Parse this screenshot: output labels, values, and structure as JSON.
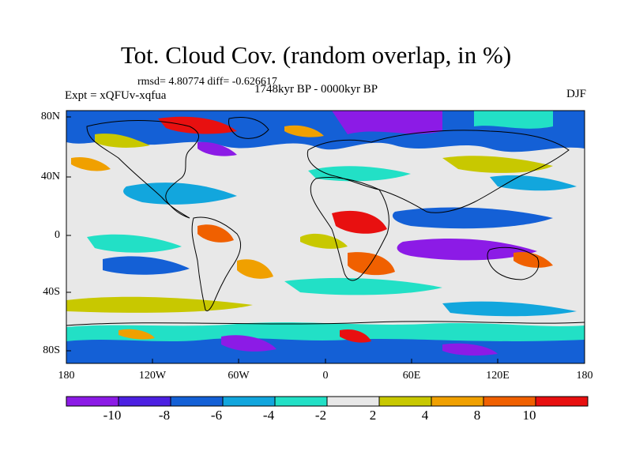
{
  "header": {
    "title": "Tot. Cloud Cov. (random overlap, in %)",
    "stats": "rmsd= 4.80774 diff= -0.626617",
    "experiment": "Expt = xQFUv-xqfua",
    "period": "1748kyr BP - 0000kyr BP",
    "season": "DJF"
  },
  "map": {
    "lat_labels": [
      "80N",
      "40N",
      "0",
      "40S",
      "80S"
    ],
    "lon_labels": [
      "180",
      "120W",
      "60W",
      "0",
      "60E",
      "120E",
      "180"
    ]
  },
  "colorbar": {
    "labels": [
      "-10",
      "-8",
      "-6",
      "-4",
      "-2",
      "2",
      "4",
      "8",
      "10"
    ],
    "colors": [
      "#8c1be6",
      "#4c20e2",
      "#1460d6",
      "#12a6dd",
      "#22e0c6",
      "#e8e8e8",
      "#c8c800",
      "#f0a000",
      "#f06000",
      "#e81010"
    ]
  }
}
